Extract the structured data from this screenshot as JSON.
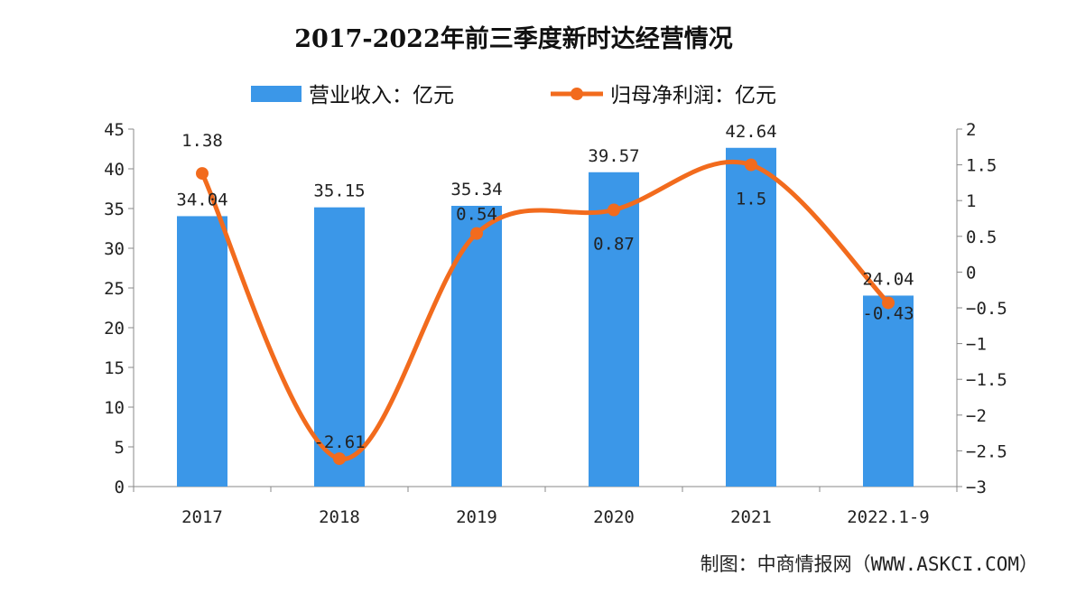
{
  "chart_data": {
    "type": "bar+line",
    "title": "2017-2022年前三季度新时达经营情况",
    "categories": [
      "2017",
      "2018",
      "2019",
      "2020",
      "2021",
      "2022.1-9"
    ],
    "series": [
      {
        "name": "营业收入：亿元",
        "type": "bar",
        "axis": "left",
        "color": "#3b97e8",
        "values": [
          34.04,
          35.15,
          35.34,
          39.57,
          42.64,
          24.04
        ],
        "labels": [
          "34.04",
          "35.15",
          "35.34",
          "39.57",
          "42.64",
          "24.04"
        ]
      },
      {
        "name": "归母净利润：亿元",
        "type": "line",
        "axis": "right",
        "color": "#f26b1d",
        "smooth": true,
        "values": [
          1.38,
          -2.61,
          0.54,
          0.87,
          1.5,
          -0.43
        ],
        "labels": [
          "1.38",
          "-2.61",
          "0.54",
          "0.87",
          "1.5",
          "-0.43"
        ]
      }
    ],
    "left_axis": {
      "ylim": [
        0,
        45
      ],
      "ticks": [
        "0",
        "5",
        "10",
        "15",
        "20",
        "25",
        "30",
        "35",
        "40",
        "45"
      ]
    },
    "right_axis": {
      "ylim": [
        -3,
        2
      ],
      "ticks": [
        "-3",
        "-2.5",
        "-2",
        "-1.5",
        "-1",
        "-0.5",
        "0",
        "0.5",
        "1",
        "1.5",
        "2"
      ]
    },
    "legend_placement": "top",
    "grid": false
  },
  "source": "制图：中商情报网（WWW.ASKCI.COM）"
}
